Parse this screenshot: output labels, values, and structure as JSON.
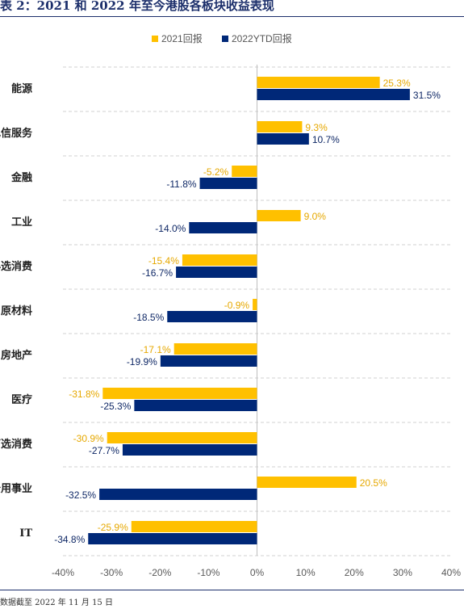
{
  "header": {
    "title": "表 2：2021 和 2022 年至今港股各板块收益表现"
  },
  "footer": {
    "note": "数据截至 2022 年 11 月 15 日"
  },
  "chart_data": {
    "type": "bar",
    "orientation": "horizontal",
    "title": "",
    "categories": [
      "能源",
      "电信服务",
      "金融",
      "工业",
      "必选消费",
      "原材料",
      "房地产",
      "医疗",
      "可选消费",
      "公用事业",
      "IT"
    ],
    "series": [
      {
        "name": "2021回报",
        "color": "#ffc000",
        "values": [
          25.3,
          9.3,
          -5.2,
          9.0,
          -15.4,
          -0.9,
          -17.1,
          -31.8,
          -30.9,
          20.5,
          -25.9
        ]
      },
      {
        "name": "2022YTD回报",
        "color": "#002878",
        "values": [
          31.5,
          10.7,
          -11.8,
          -14.0,
          -16.7,
          -18.5,
          -19.9,
          -25.3,
          -27.7,
          -32.5,
          -34.8
        ]
      }
    ],
    "xlim": [
      -40,
      40
    ],
    "xticks": [
      -40,
      -30,
      -20,
      -10,
      0,
      10,
      20,
      30,
      40
    ],
    "xtick_suffix": "%",
    "grid": "horizontal-dashed",
    "legend_position": "top-center"
  }
}
